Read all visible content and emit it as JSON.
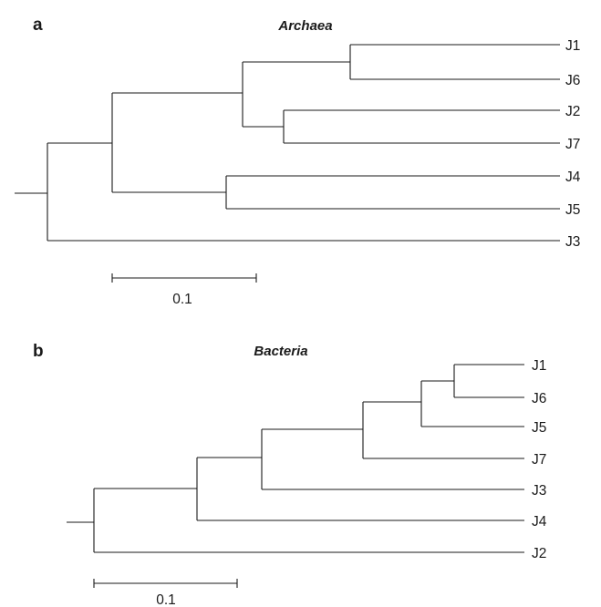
{
  "panels": [
    {
      "letter": "a",
      "title": "Archaea",
      "scale_bar_label": "0.1",
      "leaves": [
        "J1",
        "J6",
        "J2",
        "J7",
        "J4",
        "J5",
        "J3"
      ]
    },
    {
      "letter": "b",
      "title": "Bacteria",
      "scale_bar_label": "0.1",
      "leaves": [
        "J1",
        "J6",
        "J5",
        "J7",
        "J3",
        "J4",
        "J2"
      ]
    }
  ]
}
